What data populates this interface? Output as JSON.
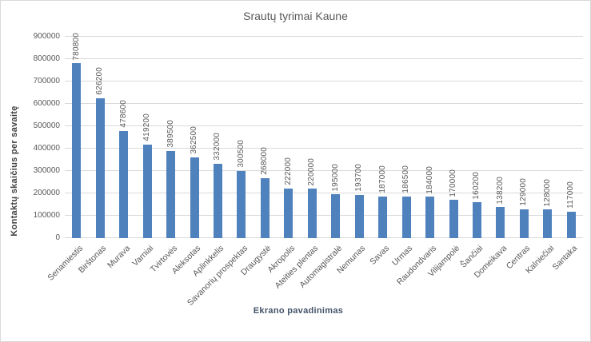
{
  "chart": {
    "title": "Srautų tyrimai Kaune",
    "x_axis_title": "Ekrano pavadinimas",
    "y_axis_title": "Kontaktų skaičius per savaitę"
  },
  "chart_data": {
    "type": "bar",
    "title": "Srautų tyrimai Kaune",
    "xlabel": "Ekrano pavadinimas",
    "ylabel": "Kontaktų skaičius per savaitę",
    "categories": [
      "Senamiestis",
      "Birštonas",
      "Murava",
      "Varniai",
      "Tvirtovės",
      "Aleksotas",
      "Aplinkkelis",
      "Savanorių prospektas",
      "Draugystė",
      "Akropolis",
      "Ateities plentas",
      "Automagistralė",
      "Nemunas",
      "Savas",
      "Urmas",
      "Raudondvaris",
      "Vilijampolė",
      "Šančiai",
      "Domeikava",
      "Centras",
      "Kalniečiai",
      "Santaka"
    ],
    "values": [
      780800,
      626200,
      478600,
      419200,
      389500,
      362500,
      332000,
      300500,
      268000,
      222000,
      220000,
      195000,
      193700,
      187000,
      186500,
      184000,
      170000,
      160200,
      138200,
      129000,
      128000,
      117000
    ],
    "data_labels": true,
    "ylim": [
      0,
      900000
    ],
    "y_ticks": [
      0,
      100000,
      200000,
      300000,
      400000,
      500000,
      600000,
      700000,
      800000,
      900000
    ],
    "grid": true,
    "legend": false
  },
  "colors": {
    "bar": "#4F81BD",
    "gridline": "#D9D9D9",
    "tick_text": "#595959",
    "title_text": "#595959",
    "x_axis_title_text": "#44546A",
    "y_axis_title_text": "#404040"
  }
}
